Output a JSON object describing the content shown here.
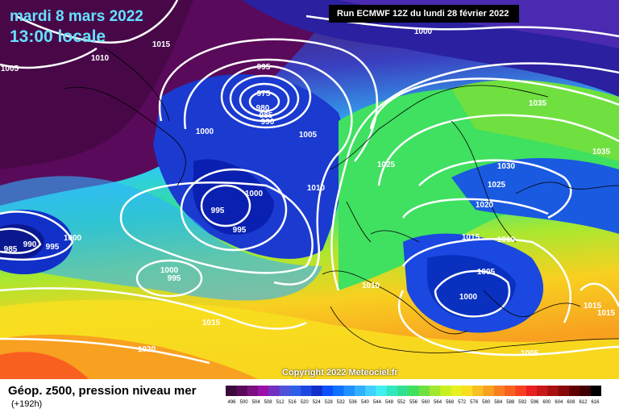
{
  "header": {
    "date": "mardi 8 mars 2022",
    "time": "13:00 locale",
    "run": "Run ECMWF 12Z du lundi 28 février 2022"
  },
  "footer": {
    "parameter": "Géop. z500, pression niveau mer",
    "lead": "(+192h)",
    "copyright": "Copyright 2022 Meteociel.fr"
  },
  "pressure_labels": [
    {
      "text": "1015"
    },
    {
      "text": "1010"
    },
    {
      "text": "1005"
    },
    {
      "text": "995"
    },
    {
      "text": "975"
    },
    {
      "text": "980"
    },
    {
      "text": "985"
    },
    {
      "text": "990"
    },
    {
      "text": "1000"
    },
    {
      "text": "1005"
    },
    {
      "text": "1000"
    },
    {
      "text": "995"
    },
    {
      "text": "995"
    },
    {
      "text": "985"
    },
    {
      "text": "990"
    },
    {
      "text": "995"
    },
    {
      "text": "1000"
    },
    {
      "text": "1000"
    },
    {
      "text": "995"
    },
    {
      "text": "1015"
    },
    {
      "text": "1020"
    },
    {
      "text": "1000"
    },
    {
      "text": "1035"
    },
    {
      "text": "1035"
    },
    {
      "text": "1025"
    },
    {
      "text": "1030"
    },
    {
      "text": "1025"
    },
    {
      "text": "1010"
    },
    {
      "text": "1020"
    },
    {
      "text": "1015"
    },
    {
      "text": "1010"
    },
    {
      "text": "1005"
    },
    {
      "text": "1010"
    },
    {
      "text": "1000"
    },
    {
      "text": "1015"
    },
    {
      "text": "1015"
    },
    {
      "text": "1005"
    }
  ],
  "legend": {
    "colors": [
      "#3a0a3a",
      "#5a0a5a",
      "#7a1080",
      "#9a10a8",
      "#7030c0",
      "#5050d8",
      "#3060e8",
      "#1a48e0",
      "#1030c8",
      "#0a50ff",
      "#1070ff",
      "#2090ff",
      "#30b0ff",
      "#40d0ff",
      "#40f0f0",
      "#30e8c0",
      "#30e090",
      "#40e060",
      "#70e040",
      "#a0e830",
      "#c8f020",
      "#e8f020",
      "#f8e020",
      "#f8c020",
      "#f8a020",
      "#f88020",
      "#f86020",
      "#f84020",
      "#e82020",
      "#c81818",
      "#a81010",
      "#880808",
      "#600000",
      "#400000",
      "#000000"
    ],
    "labels": [
      "496",
      "500",
      "504",
      "508",
      "512",
      "516",
      "520",
      "524",
      "528",
      "532",
      "536",
      "540",
      "544",
      "548",
      "552",
      "556",
      "560",
      "564",
      "568",
      "572",
      "576",
      "580",
      "584",
      "588",
      "592",
      "596",
      "600",
      "604",
      "608",
      "612",
      "616"
    ]
  }
}
